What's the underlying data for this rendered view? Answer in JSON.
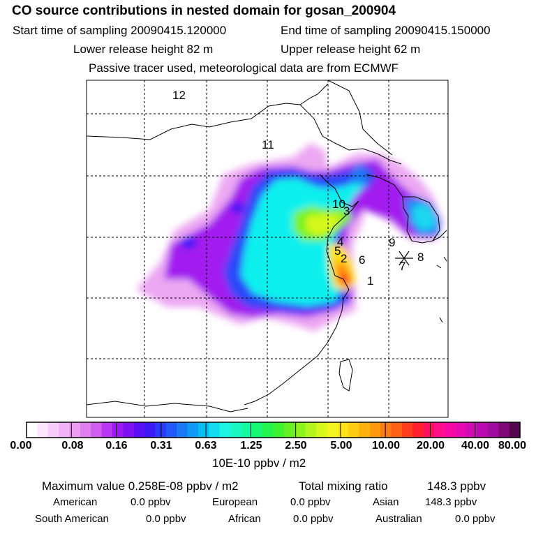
{
  "header": {
    "title": "CO  source contributions in nested domain for gosan_200904",
    "start_label": "Start time of sampling 20090415.120000",
    "end_label": "End time of sampling 20090415.150000",
    "lower_label": "Lower release height   82 m",
    "upper_label": "Upper release height   62 m",
    "tracer_note": "Passive tracer used, meteorological data are from ECMWF"
  },
  "map": {
    "region_labels": [
      "1",
      "2",
      "3",
      "4",
      "5",
      "6",
      "7",
      "8",
      "9",
      "10",
      "11",
      "12"
    ]
  },
  "colorbar": {
    "colors": [
      "#ffffff",
      "#fde6fd",
      "#f8ccf8",
      "#f1b1f5",
      "#ec9cf3",
      "#e07ff0",
      "#cf5ef0",
      "#bb36f0",
      "#9e19ef",
      "#7d12f0",
      "#5a10f2",
      "#3d1af5",
      "#2b39f8",
      "#2358f8",
      "#1a7af5",
      "#0e9bf3",
      "#09bdf2",
      "#11dcf0",
      "#1ef4e3",
      "#19f8c2",
      "#16f9a0",
      "#17f975",
      "#23f54c",
      "#3ff230",
      "#66f024",
      "#8df31c",
      "#b3f51c",
      "#d8f81d",
      "#f3f51e",
      "#fbe419",
      "#fdcc13",
      "#ffb30f",
      "#ff9910",
      "#ff7c14",
      "#ff5f17",
      "#ff3c1c",
      "#ff1f2e",
      "#ff1060",
      "#ff0e8a",
      "#f50aa5",
      "#e409b0",
      "#d00ab4",
      "#b90ab0",
      "#9e0a9e",
      "#800878",
      "#55064d"
    ],
    "tick_labels": [
      "0.00",
      "0.08",
      "0.16",
      "0.31",
      "0.63",
      "1.25",
      "2.50",
      "5.00",
      "10.00",
      "20.00",
      "40.00",
      "80.00"
    ],
    "unit_label": "10E-10 ppbv / m2"
  },
  "stats": {
    "max_value": "Maximum value  0.258E-08 ppbv / m2",
    "total_label": "Total mixing ratio",
    "total_value": "148.3 ppbv"
  },
  "regions": [
    {
      "name": "American",
      "value": "0.0 ppbv"
    },
    {
      "name": "European",
      "value": "0.0 ppbv"
    },
    {
      "name": "Asian",
      "value": "148.3 ppbv"
    },
    {
      "name": "South American",
      "value": "0.0 ppbv"
    },
    {
      "name": "African",
      "value": "0.0 ppbv"
    },
    {
      "name": "Australian",
      "value": "0.0 ppbv"
    }
  ]
}
